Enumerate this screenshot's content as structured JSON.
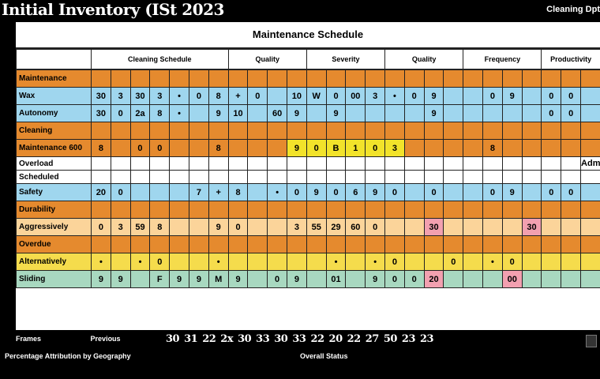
{
  "header": {
    "title": "Initial Inventory (ISt 2023",
    "right_label": "Cleaning Dpt"
  },
  "sheet": {
    "title": "Maintenance Schedule",
    "columns": [
      "",
      "Cleaning Schedule",
      "Quality",
      "Severity",
      "Quality",
      "Frequency",
      "Productivity"
    ]
  },
  "rows": [
    {
      "label": "Maintenance",
      "style": "orange",
      "cells": [
        "",
        "",
        "",
        "",
        "",
        "",
        "",
        "",
        "",
        "",
        "",
        "",
        "",
        "",
        "",
        "",
        "",
        "",
        "",
        "",
        "",
        "",
        "",
        "",
        "",
        ""
      ]
    },
    {
      "label": "Wax",
      "style": "blue",
      "cells": [
        "30",
        "3",
        "30",
        "3",
        "•",
        "0",
        "8",
        "+",
        "0",
        "",
        "10",
        "W",
        "0",
        "00",
        "3",
        "•",
        "0",
        "9",
        "",
        "",
        "0",
        "9",
        "",
        "0",
        "0",
        ""
      ]
    },
    {
      "label": "Autonomy",
      "style": "blue",
      "cells": [
        "30",
        "0",
        "2a",
        "8",
        "•",
        "",
        "9",
        "10",
        "",
        "60",
        "9",
        "",
        "9",
        "",
        "",
        "",
        "",
        "9",
        "",
        "",
        "",
        "",
        "",
        "0",
        "0",
        ""
      ]
    },
    {
      "label": "Cleaning",
      "style": "orange",
      "cells": [
        "",
        "",
        "",
        "",
        "",
        "",
        "",
        "",
        "",
        "",
        "",
        "",
        "",
        "",
        "",
        "",
        "",
        "",
        "",
        "",
        "",
        "",
        "",
        "",
        "",
        ""
      ]
    },
    {
      "label": "Maintenance 600",
      "style": "orange",
      "cells": [
        "8",
        "",
        "0",
        "0",
        "",
        "",
        "8",
        "",
        "",
        "",
        "9",
        "0",
        "B",
        "1",
        "0",
        "3",
        "",
        "",
        "",
        "",
        "8",
        "",
        "",
        "",
        "",
        ""
      ]
    },
    {
      "label": "Overload",
      "style": "white",
      "cells": [
        "",
        "",
        "",
        "",
        "",
        "",
        "",
        "",
        "",
        "",
        "",
        "",
        "",
        "",
        "",
        "",
        "",
        "",
        "",
        "",
        "",
        "",
        "",
        "",
        "",
        "Admin"
      ]
    },
    {
      "label": "Scheduled",
      "style": "white",
      "cells": [
        "",
        "",
        "",
        "",
        "",
        "",
        "",
        "",
        "",
        "",
        "",
        "",
        "",
        "",
        "",
        "",
        "",
        "",
        "",
        "",
        "",
        "",
        "",
        "",
        "",
        ""
      ]
    },
    {
      "label": "Safety",
      "style": "blue",
      "cells": [
        "20",
        "0",
        "",
        "",
        "",
        "7",
        "+",
        "8",
        "",
        "•",
        "0",
        "9",
        "0",
        "6",
        "9",
        "0",
        "",
        "0",
        "",
        "",
        "0",
        "9",
        "",
        "0",
        "0",
        ""
      ]
    },
    {
      "label": "Durability",
      "style": "orange",
      "cells": [
        "",
        "",
        "",
        "",
        "",
        "",
        "",
        "",
        "",
        "",
        "",
        "",
        "",
        "",
        "",
        "",
        "",
        "",
        "",
        "",
        "",
        "",
        "",
        "",
        "",
        ""
      ]
    },
    {
      "label": "Aggressively",
      "style": "peach",
      "cells": [
        "0",
        "3",
        "59",
        "8",
        "",
        "",
        "9",
        "0",
        "",
        "",
        "3",
        "55",
        "29",
        "60",
        "0",
        "",
        "",
        "30",
        "",
        "",
        "",
        "",
        "30",
        "",
        "",
        ""
      ]
    },
    {
      "label": "Overdue",
      "style": "orange",
      "cells": [
        "",
        "",
        "",
        "",
        "",
        "",
        "",
        "",
        "",
        "",
        "",
        "",
        "",
        "",
        "",
        "",
        "",
        "",
        "",
        "",
        "",
        "",
        "",
        "",
        "",
        ""
      ]
    },
    {
      "label": "Alternatively",
      "style": "ygold",
      "cells": [
        "•",
        "",
        "•",
        "0",
        "",
        "",
        "•",
        "",
        "",
        "",
        "",
        "",
        "•",
        "",
        "•",
        "0",
        "",
        "",
        "0",
        "",
        "•",
        "0",
        "",
        "",
        "",
        ""
      ]
    },
    {
      "label": "Sliding",
      "style": "grad",
      "cells": [
        "9",
        "9",
        "",
        "F",
        "9",
        "9",
        "M",
        "9",
        "",
        "0",
        "9",
        "",
        "01",
        "",
        "9",
        "0",
        "0",
        "20",
        "",
        "",
        "",
        "00",
        "",
        "",
        "",
        ""
      ]
    }
  ],
  "footer": {
    "left_a": "Frames",
    "left_b": "Previous",
    "values": [
      "30",
      "31",
      "22",
      "2x",
      "30",
      "33",
      "30",
      "33",
      "22",
      "20",
      "22",
      "27",
      "50",
      "23",
      "23"
    ],
    "note": "Overall Status",
    "caption": "Percentage Attribution by Geography"
  }
}
